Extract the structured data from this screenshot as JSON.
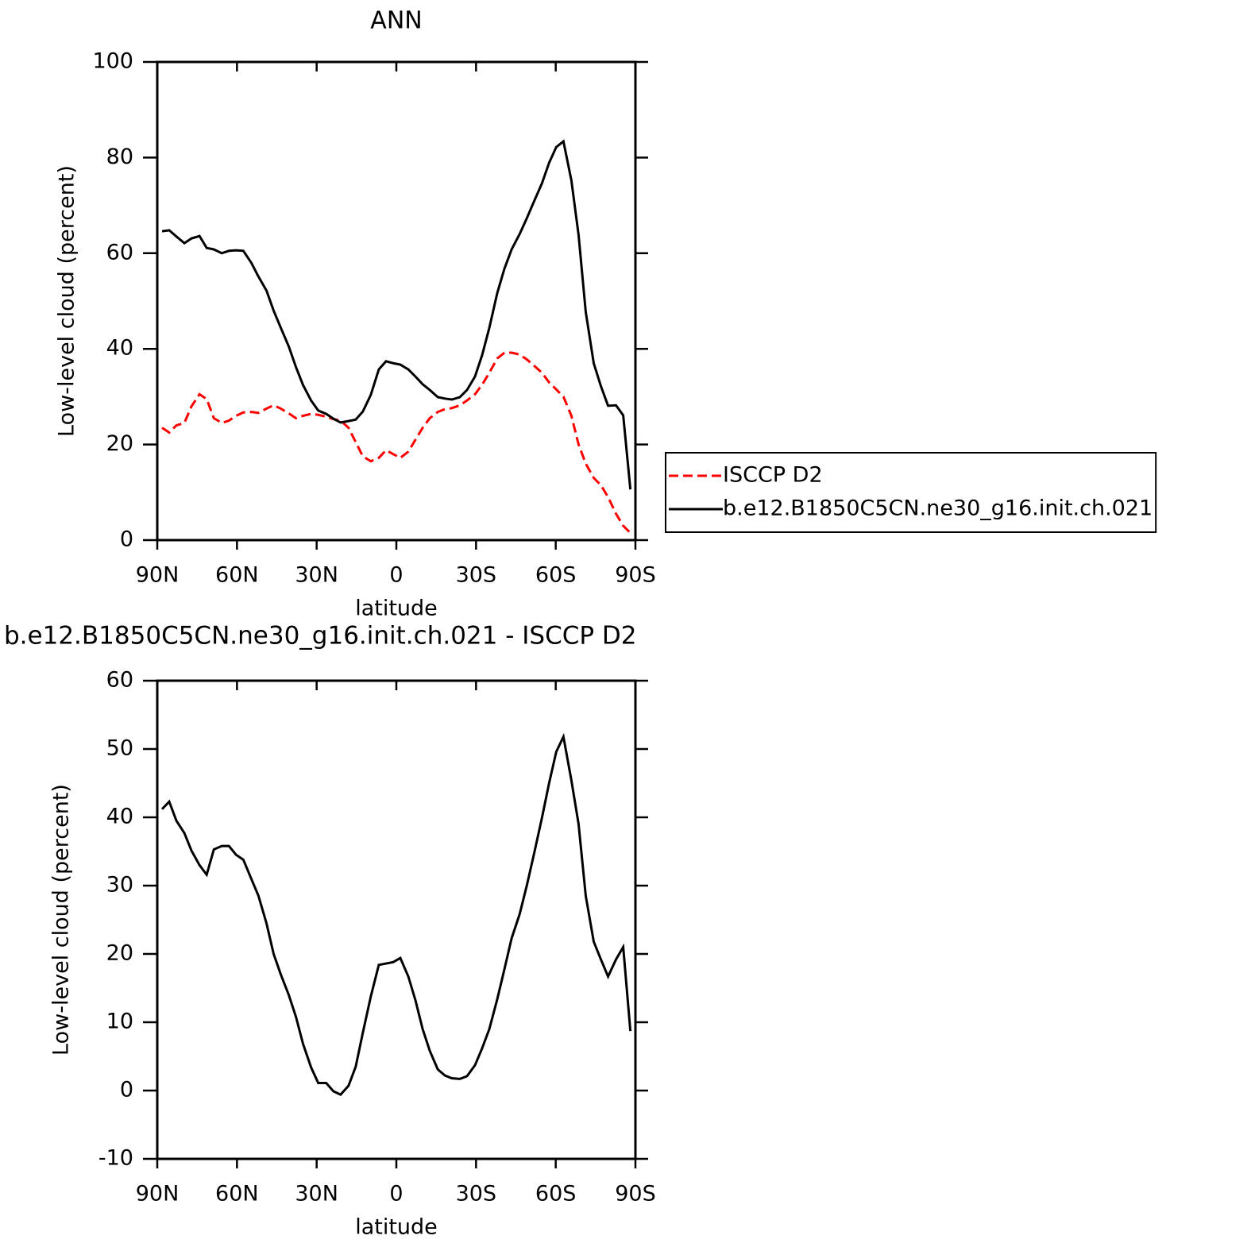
{
  "chart_data": [
    {
      "type": "line",
      "title": "ANN",
      "xlabel": "latitude",
      "ylabel": "Low-level cloud (percent)",
      "x": [
        88.2,
        85.5,
        82.8,
        79.8,
        77.1,
        74.1,
        71.4,
        68.7,
        65.7,
        63.0,
        60.3,
        57.6,
        54.6,
        51.9,
        48.9,
        46.2,
        43.5,
        40.5,
        37.8,
        35.1,
        32.1,
        29.4,
        26.4,
        23.7,
        21.0,
        18.0,
        15.3,
        12.6,
        9.6,
        6.6,
        3.9,
        1.2,
        -1.5,
        -4.5,
        -7.2,
        -9.9,
        -12.6,
        -15.6,
        -18.3,
        -20.9,
        -23.9,
        -26.6,
        -29.6,
        -32.3,
        -35.0,
        -38.0,
        -40.7,
        -43.4,
        -46.4,
        -49.1,
        -51.8,
        -54.8,
        -57.5,
        -60.2,
        -62.9,
        -65.9,
        -68.6,
        -71.3,
        -74.3,
        -77.0,
        -79.7,
        -82.7,
        -85.4,
        -88.1
      ],
      "series": [
        {
          "name": "ISCCP D2",
          "color": "#ff0000",
          "line_style": "dashed",
          "values": [
            23.5,
            22.5,
            24.0,
            24.5,
            28.0,
            30.5,
            29.5,
            25.5,
            24.5,
            25.0,
            26.0,
            26.7,
            26.8,
            26.6,
            27.5,
            28.2,
            27.5,
            26.5,
            25.5,
            26.0,
            26.4,
            26.2,
            25.8,
            25.3,
            25.0,
            23.5,
            20.5,
            17.5,
            16.5,
            17.2,
            18.8,
            18.0,
            17.2,
            18.5,
            21.0,
            23.5,
            25.5,
            26.8,
            27.4,
            27.6,
            28.2,
            29.2,
            30.5,
            32.5,
            35.0,
            38.0,
            39.2,
            39.2,
            38.8,
            37.8,
            36.5,
            35.0,
            33.0,
            31.5,
            30.0,
            26.0,
            20.0,
            16.0,
            13.0,
            11.5,
            9.0,
            5.5,
            3.0,
            1.5
          ]
        },
        {
          "name": "b.e12.B1850C5CN.ne30_g16.init.ch.021",
          "color": "#000000",
          "line_style": "solid",
          "values": [
            64.6,
            64.8,
            63.5,
            62.1,
            63.1,
            63.6,
            61.1,
            60.8,
            60.0,
            60.5,
            60.6,
            60.5,
            58.0,
            55.1,
            52.2,
            48.0,
            44.4,
            40.5,
            36.2,
            32.4,
            29.2,
            27.1,
            26.4,
            25.4,
            24.6,
            24.9,
            25.2,
            26.9,
            30.4,
            35.7,
            37.4,
            37.0,
            36.7,
            35.7,
            34.2,
            32.6,
            31.4,
            29.9,
            29.6,
            29.4,
            29.9,
            31.4,
            34.2,
            38.7,
            44.4,
            51.7,
            56.8,
            60.8,
            64.0,
            67.3,
            70.8,
            74.6,
            78.9,
            82.2,
            83.4,
            75.2,
            63.8,
            47.7,
            37.0,
            32.2,
            28.1,
            28.2,
            26.1,
            10.6
          ]
        }
      ],
      "xlim": [
        90,
        -90
      ],
      "xticks": [
        {
          "value": 90,
          "label": "90N"
        },
        {
          "value": 60,
          "label": "60N"
        },
        {
          "value": 30,
          "label": "30N"
        },
        0,
        {
          "value": -30,
          "label": "30S"
        },
        {
          "value": -60,
          "label": "60S"
        },
        {
          "value": -90,
          "label": "90S"
        }
      ],
      "ylim": [
        0,
        100
      ],
      "yticks": [
        0,
        20,
        40,
        60,
        80,
        100
      ],
      "legend": "right"
    },
    {
      "type": "line",
      "title": "b.e12.B1850C5CN.ne30_g16.init.ch.021 - ISCCP D2",
      "xlabel": "latitude",
      "ylabel": "Low-level cloud (percent)",
      "x": [
        88.2,
        85.5,
        82.8,
        79.8,
        77.1,
        74.1,
        71.4,
        68.7,
        65.7,
        63.0,
        60.3,
        57.6,
        54.6,
        51.9,
        48.9,
        46.2,
        43.5,
        40.5,
        37.8,
        35.1,
        32.1,
        29.4,
        26.4,
        23.7,
        21.0,
        18.0,
        15.3,
        12.6,
        9.6,
        6.6,
        3.9,
        1.2,
        -1.5,
        -4.5,
        -7.2,
        -9.9,
        -12.6,
        -15.6,
        -18.3,
        -20.9,
        -23.9,
        -26.6,
        -29.6,
        -32.3,
        -35.0,
        -38.0,
        -40.7,
        -43.4,
        -46.4,
        -49.1,
        -51.8,
        -54.8,
        -57.5,
        -60.2,
        -62.9,
        -65.9,
        -68.6,
        -71.3,
        -74.3,
        -77.0,
        -79.7,
        -82.7,
        -85.4,
        -88.1
      ],
      "series": [
        {
          "color": "#000000",
          "line_style": "solid",
          "values": [
            41.2,
            42.3,
            39.5,
            37.7,
            35.1,
            33.0,
            31.6,
            35.3,
            35.8,
            35.8,
            34.5,
            33.8,
            31.0,
            28.5,
            24.5,
            20.0,
            17.0,
            14.0,
            10.8,
            6.8,
            3.4,
            1.1,
            1.1,
            -0.1,
            -0.6,
            0.7,
            3.5,
            8.5,
            13.8,
            18.4,
            18.6,
            18.8,
            19.4,
            16.7,
            13.2,
            9.0,
            5.8,
            3.1,
            2.2,
            1.8,
            1.7,
            2.1,
            3.7,
            6.2,
            9.0,
            13.4,
            17.8,
            22.3,
            25.8,
            30.0,
            34.6,
            39.9,
            45.0,
            49.6,
            51.8,
            45.4,
            39.0,
            28.5,
            21.8,
            19.2,
            16.7,
            19.2,
            21.0,
            8.7
          ]
        }
      ],
      "xlim": [
        90,
        -90
      ],
      "xticks": [
        {
          "value": 90,
          "label": "90N"
        },
        {
          "value": 60,
          "label": "60N"
        },
        {
          "value": 30,
          "label": "30N"
        },
        0,
        {
          "value": -30,
          "label": "30S"
        },
        {
          "value": -60,
          "label": "60S"
        },
        {
          "value": -90,
          "label": "90S"
        }
      ],
      "ylim": [
        -10,
        60
      ],
      "yticks": [
        -10,
        0,
        10,
        20,
        30,
        40,
        50,
        60
      ]
    }
  ]
}
